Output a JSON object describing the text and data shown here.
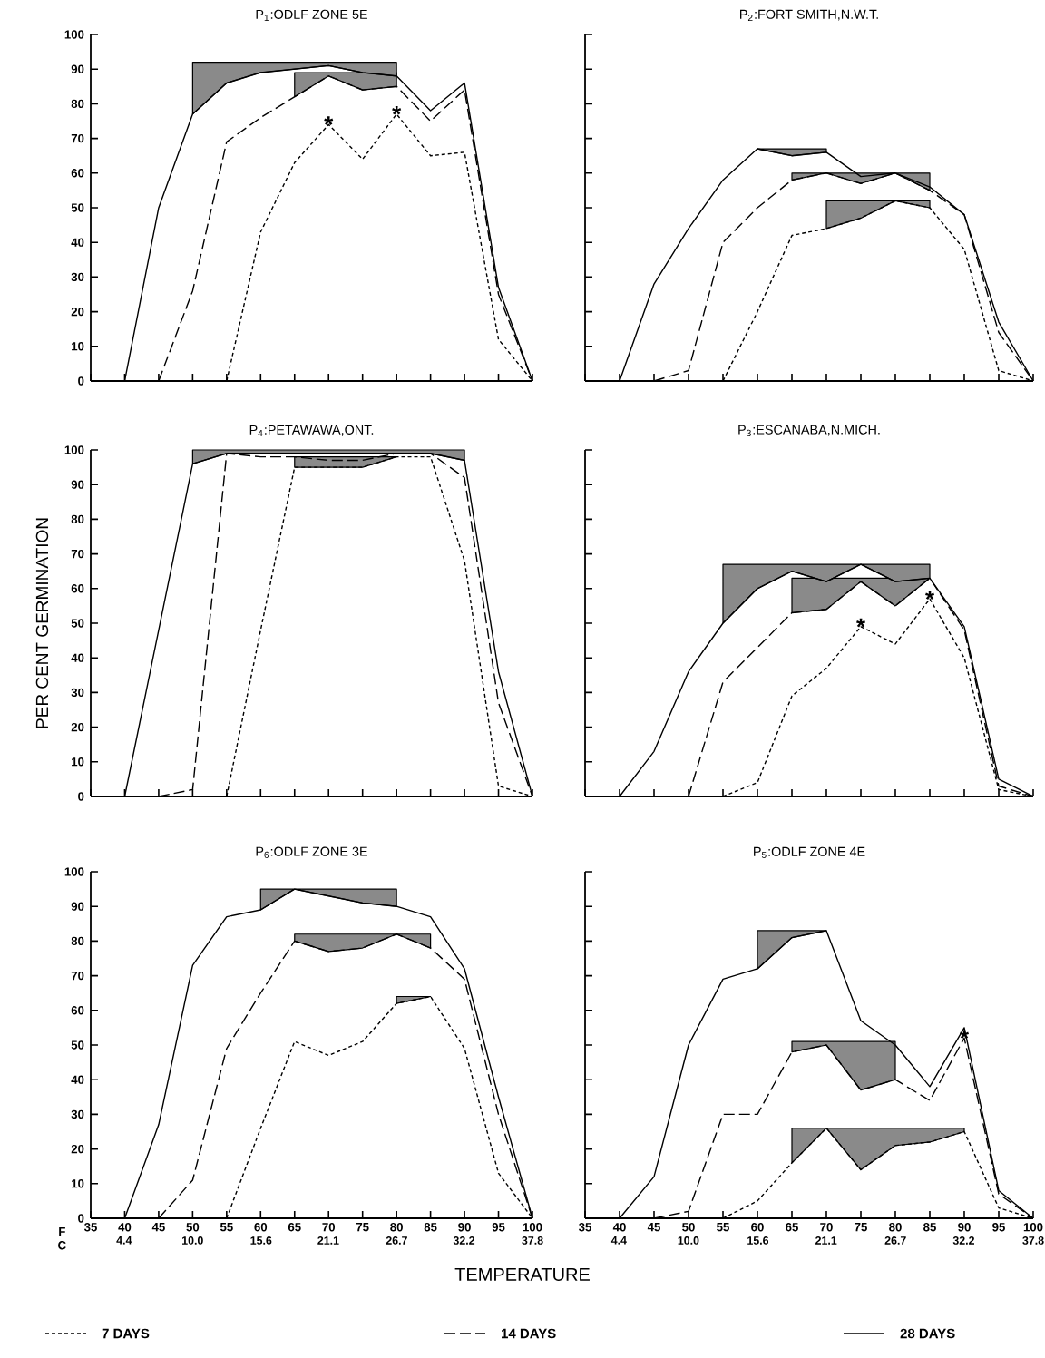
{
  "chart_data": [
    {
      "type": "line",
      "title": "P$_{1}$:ODLF ZONE 5E",
      "xlim": [
        35,
        100
      ],
      "ylim": [
        0,
        100
      ],
      "xticks": [
        35,
        40,
        45,
        50,
        55,
        60,
        65,
        70,
        75,
        80,
        85,
        90,
        95,
        100
      ],
      "yticks": [
        0,
        10,
        20,
        30,
        40,
        50,
        60,
        70,
        80,
        90,
        100
      ],
      "tick_labels": "y",
      "annotations": [
        {
          "text": "*",
          "x": 70,
          "y": 74
        },
        {
          "text": "*",
          "x": 80,
          "y": 77
        }
      ],
      "series": [
        {
          "color": "#000000",
          "line_style": "dotted",
          "x": [
            55,
            60,
            65,
            70,
            75,
            80,
            85,
            90,
            95,
            100
          ],
          "values": [
            0,
            43,
            63,
            74,
            64,
            77,
            65,
            66,
            12,
            0
          ]
        },
        {
          "color": "#000000",
          "line_style": "dashed",
          "x": [
            45,
            50,
            55,
            60,
            65,
            70,
            75,
            80,
            85,
            90,
            95,
            100
          ],
          "values": [
            0,
            26,
            69,
            76,
            82,
            88,
            84,
            85,
            75,
            84,
            25,
            0
          ],
          "lower": [
            null,
            null,
            null,
            null,
            82,
            88,
            84,
            85,
            null,
            null,
            null,
            null
          ],
          "upper": [
            null,
            null,
            null,
            null,
            89,
            89,
            89,
            89,
            null,
            null,
            null,
            null
          ]
        },
        {
          "color": "#000000",
          "line_style": "solid",
          "x": [
            40,
            45,
            50,
            55,
            60,
            65,
            70,
            75,
            80,
            85,
            90,
            95,
            100
          ],
          "values": [
            0,
            50,
            77,
            86,
            89,
            90,
            91,
            89,
            88,
            78,
            86,
            27,
            0
          ],
          "lower": [
            null,
            null,
            77,
            86,
            89,
            90,
            91,
            89,
            88,
            null,
            null,
            null,
            null
          ],
          "upper": [
            null,
            null,
            92,
            92,
            92,
            92,
            92,
            92,
            92,
            null,
            null,
            null,
            null
          ]
        }
      ]
    },
    {
      "type": "line",
      "title": "P$_{2}$:FORT SMITH,N.W.T.",
      "xlim": [
        35,
        100
      ],
      "ylim": [
        0,
        100
      ],
      "xticks": [
        35,
        40,
        45,
        50,
        55,
        60,
        65,
        70,
        75,
        80,
        85,
        90,
        95,
        100
      ],
      "yticks": [
        0,
        10,
        20,
        30,
        40,
        50,
        60,
        70,
        80,
        90,
        100
      ],
      "tick_labels": false,
      "series": [
        {
          "color": "#000000",
          "line_style": "dotted",
          "x": [
            55,
            60,
            65,
            70,
            75,
            80,
            85,
            90,
            95,
            100
          ],
          "values": [
            0,
            20,
            42,
            44,
            47,
            52,
            50,
            38,
            3,
            0
          ],
          "lower": [
            null,
            null,
            null,
            44,
            47,
            52,
            50,
            null,
            null,
            null
          ],
          "upper": [
            null,
            null,
            null,
            52,
            52,
            52,
            52,
            null,
            null,
            null
          ]
        },
        {
          "color": "#000000",
          "line_style": "dashed",
          "x": [
            45,
            50,
            55,
            60,
            65,
            70,
            75,
            80,
            85,
            90,
            95,
            100
          ],
          "values": [
            0,
            3,
            40,
            50,
            58,
            60,
            57,
            60,
            55,
            48,
            14,
            0
          ],
          "lower": [
            null,
            null,
            null,
            null,
            58,
            60,
            57,
            60,
            55,
            null,
            null,
            null
          ],
          "upper": [
            null,
            null,
            null,
            null,
            60,
            60,
            60,
            60,
            60,
            null,
            null,
            null
          ]
        },
        {
          "color": "#000000",
          "line_style": "solid",
          "x": [
            40,
            45,
            50,
            55,
            60,
            65,
            70,
            75,
            80,
            85,
            90,
            95,
            100
          ],
          "values": [
            0,
            28,
            44,
            58,
            67,
            65,
            66,
            59,
            60,
            56,
            48,
            17,
            0
          ],
          "lower": [
            null,
            null,
            null,
            null,
            67,
            65,
            66,
            null,
            null,
            null,
            null,
            null,
            null
          ],
          "upper": [
            null,
            null,
            null,
            null,
            67,
            67,
            67,
            null,
            null,
            null,
            null,
            null,
            null
          ]
        }
      ]
    },
    {
      "type": "line",
      "title": "P$_{4}$:PETAWAWA,ONT.",
      "ylabel": "PER CENT GERMINATION",
      "xlim": [
        35,
        100
      ],
      "ylim": [
        0,
        100
      ],
      "xticks": [
        35,
        40,
        45,
        50,
        55,
        60,
        65,
        70,
        75,
        80,
        85,
        90,
        95,
        100
      ],
      "yticks": [
        0,
        10,
        20,
        30,
        40,
        50,
        60,
        70,
        80,
        90,
        100
      ],
      "tick_labels": "y",
      "series": [
        {
          "color": "#000000",
          "line_style": "dotted",
          "x": [
            55,
            60,
            65,
            70,
            75,
            80,
            85,
            90,
            95,
            100
          ],
          "values": [
            0,
            48,
            95,
            95,
            95,
            98,
            98,
            68,
            3,
            0
          ],
          "lower": [
            null,
            null,
            95,
            95,
            95,
            98,
            null,
            null,
            null,
            null
          ],
          "upper": [
            null,
            null,
            98,
            98,
            98,
            98,
            null,
            null,
            null,
            null
          ]
        },
        {
          "color": "#000000",
          "line_style": "dashed",
          "x": [
            45,
            50,
            55,
            60,
            65,
            70,
            75,
            80,
            85,
            90,
            95,
            100
          ],
          "values": [
            0,
            2,
            99,
            98,
            98,
            97,
            97,
            99,
            99,
            92,
            27,
            0
          ]
        },
        {
          "color": "#000000",
          "line_style": "solid",
          "x": [
            40,
            45,
            50,
            55,
            60,
            65,
            70,
            75,
            80,
            85,
            90,
            95,
            100
          ],
          "values": [
            0,
            48,
            96,
            99,
            99,
            99,
            99,
            99,
            99,
            99,
            97,
            36,
            0
          ],
          "lower": [
            null,
            null,
            96,
            99,
            99,
            99,
            99,
            99,
            99,
            99,
            97,
            null,
            null
          ],
          "upper": [
            null,
            null,
            100,
            100,
            100,
            100,
            100,
            100,
            100,
            100,
            100,
            null,
            null
          ]
        }
      ]
    },
    {
      "type": "line",
      "title": "P$_{3}$:ESCANABA,N.MICH.",
      "xlim": [
        35,
        100
      ],
      "ylim": [
        0,
        100
      ],
      "xticks": [
        35,
        40,
        45,
        50,
        55,
        60,
        65,
        70,
        75,
        80,
        85,
        90,
        95,
        100
      ],
      "yticks": [
        0,
        10,
        20,
        30,
        40,
        50,
        60,
        70,
        80,
        90,
        100
      ],
      "tick_labels": false,
      "annotations": [
        {
          "text": "*",
          "x": 75,
          "y": 49
        },
        {
          "text": "*",
          "x": 85,
          "y": 57
        }
      ],
      "series": [
        {
          "color": "#000000",
          "line_style": "dotted",
          "x": [
            55,
            60,
            65,
            70,
            75,
            80,
            85,
            90,
            95,
            100
          ],
          "values": [
            0,
            4,
            29,
            37,
            49,
            44,
            57,
            40,
            2,
            0
          ]
        },
        {
          "color": "#000000",
          "line_style": "dashed",
          "x": [
            50,
            55,
            60,
            65,
            70,
            75,
            80,
            85,
            90,
            95,
            100
          ],
          "values": [
            0,
            33,
            43,
            53,
            54,
            62,
            55,
            63,
            48,
            3,
            0
          ],
          "lower": [
            null,
            null,
            null,
            53,
            54,
            62,
            55,
            63,
            null,
            null,
            null
          ],
          "upper": [
            null,
            null,
            null,
            63,
            63,
            63,
            63,
            63,
            null,
            null,
            null
          ]
        },
        {
          "color": "#000000",
          "line_style": "solid",
          "x": [
            40,
            45,
            50,
            55,
            60,
            65,
            70,
            75,
            80,
            85,
            90,
            95,
            100
          ],
          "values": [
            0,
            13,
            36,
            50,
            60,
            65,
            62,
            67,
            62,
            63,
            49,
            5,
            0
          ],
          "lower": [
            null,
            null,
            null,
            50,
            60,
            65,
            62,
            67,
            62,
            63,
            null,
            null,
            null
          ],
          "upper": [
            null,
            null,
            null,
            67,
            67,
            67,
            67,
            67,
            67,
            67,
            null,
            null,
            null
          ]
        }
      ]
    },
    {
      "type": "line",
      "title": "P$_{6}$:ODLF ZONE 3E",
      "xlabel": "F",
      "x2label": "C",
      "legend": "bottom",
      "xlim": [
        35,
        100
      ],
      "ylim": [
        0,
        100
      ],
      "xticks": [
        35,
        40,
        45,
        50,
        55,
        60,
        65,
        70,
        75,
        80,
        85,
        90,
        95,
        100
      ],
      "yticks": [
        0,
        10,
        20,
        30,
        40,
        50,
        60,
        70,
        80,
        90,
        100
      ],
      "x2lim": [
        1.67,
        37.8
      ],
      "x2ticks": [
        4.4,
        {
          "value": 10,
          "label": "10.0"
        },
        15.6,
        21.1,
        26.7,
        32.2,
        37.8
      ],
      "annotations": [
        "TEMPERATURE"
      ],
      "series": [
        {
          "name": "7 DAYS",
          "color": "#000000",
          "line_style": "dotted",
          "x": [
            55,
            60,
            65,
            70,
            75,
            80,
            85,
            90,
            95,
            100
          ],
          "values": [
            0,
            26,
            51,
            47,
            51,
            62,
            64,
            49,
            13,
            0
          ],
          "lower": [
            null,
            null,
            null,
            null,
            null,
            62,
            64,
            null,
            null,
            null
          ],
          "upper": [
            null,
            null,
            null,
            null,
            null,
            64,
            64,
            null,
            null,
            null
          ]
        },
        {
          "name": "14 DAYS",
          "color": "#000000",
          "line_style": "dashed",
          "x": [
            45,
            50,
            55,
            60,
            65,
            70,
            75,
            80,
            85,
            90,
            95,
            100
          ],
          "values": [
            0,
            11,
            49,
            65,
            80,
            77,
            78,
            82,
            78,
            69,
            30,
            0
          ],
          "lower": [
            null,
            null,
            null,
            null,
            80,
            77,
            78,
            82,
            78,
            null,
            null,
            null
          ],
          "upper": [
            null,
            null,
            null,
            null,
            82,
            82,
            82,
            82,
            82,
            null,
            null,
            null
          ]
        },
        {
          "name": "28 DAYS",
          "color": "#000000",
          "line_style": "solid",
          "x": [
            40,
            45,
            50,
            55,
            60,
            65,
            70,
            75,
            80,
            85,
            90,
            95,
            100
          ],
          "values": [
            0,
            27,
            73,
            87,
            89,
            95,
            93,
            91,
            90,
            87,
            72,
            35,
            0
          ],
          "lower": [
            null,
            null,
            null,
            null,
            89,
            95,
            93,
            91,
            90,
            null,
            null,
            null,
            null
          ],
          "upper": [
            null,
            null,
            null,
            null,
            95,
            95,
            95,
            95,
            95,
            null,
            null,
            null,
            null
          ]
        }
      ]
    },
    {
      "type": "line",
      "title": "P$_{5}$:ODLF ZONE 4E",
      "xlim": [
        35,
        100
      ],
      "ylim": [
        0,
        100
      ],
      "xticks": [
        35,
        40,
        45,
        50,
        55,
        60,
        65,
        70,
        75,
        80,
        85,
        90,
        95,
        100
      ],
      "yticks": [
        0,
        10,
        20,
        30,
        40,
        50,
        60,
        70,
        80,
        90,
        100
      ],
      "tick_labels": "x",
      "x2lim": [
        1.67,
        37.8
      ],
      "x2ticks": [
        4.4,
        {
          "value": 10,
          "label": "10.0"
        },
        15.6,
        21.1,
        26.7,
        32.2,
        37.8
      ],
      "annotations": [
        {
          "text": "*",
          "x": 90,
          "y": 52
        }
      ],
      "series": [
        {
          "color": "#000000",
          "line_style": "dotted",
          "x": [
            55,
            60,
            65,
            70,
            75,
            80,
            85,
            90,
            95,
            100
          ],
          "values": [
            0,
            5,
            16,
            26,
            14,
            21,
            22,
            25,
            3,
            0
          ],
          "lower": [
            null,
            null,
            16,
            26,
            14,
            21,
            22,
            25,
            null,
            null
          ],
          "upper": [
            null,
            null,
            26,
            26,
            26,
            26,
            26,
            26,
            null,
            null
          ]
        },
        {
          "color": "#000000",
          "line_style": "dashed",
          "x": [
            45,
            50,
            55,
            60,
            65,
            70,
            75,
            80,
            85,
            90,
            95,
            100
          ],
          "values": [
            0,
            2,
            30,
            30,
            48,
            50,
            37,
            40,
            34,
            52,
            7,
            0
          ],
          "lower": [
            null,
            null,
            null,
            null,
            48,
            50,
            37,
            40,
            null,
            null,
            null,
            null
          ],
          "upper": [
            null,
            null,
            null,
            null,
            51,
            51,
            51,
            51,
            null,
            null,
            null,
            null
          ]
        },
        {
          "color": "#000000",
          "line_style": "solid",
          "x": [
            40,
            45,
            50,
            55,
            60,
            65,
            70,
            75,
            80,
            85,
            90,
            95,
            100
          ],
          "values": [
            0,
            12,
            50,
            69,
            72,
            81,
            83,
            57,
            50,
            38,
            55,
            8,
            0
          ],
          "lower": [
            null,
            null,
            null,
            null,
            72,
            81,
            83,
            null,
            null,
            null,
            null,
            null,
            null
          ],
          "upper": [
            null,
            null,
            null,
            null,
            83,
            83,
            83,
            null,
            null,
            null,
            null,
            null,
            null
          ]
        }
      ]
    }
  ]
}
